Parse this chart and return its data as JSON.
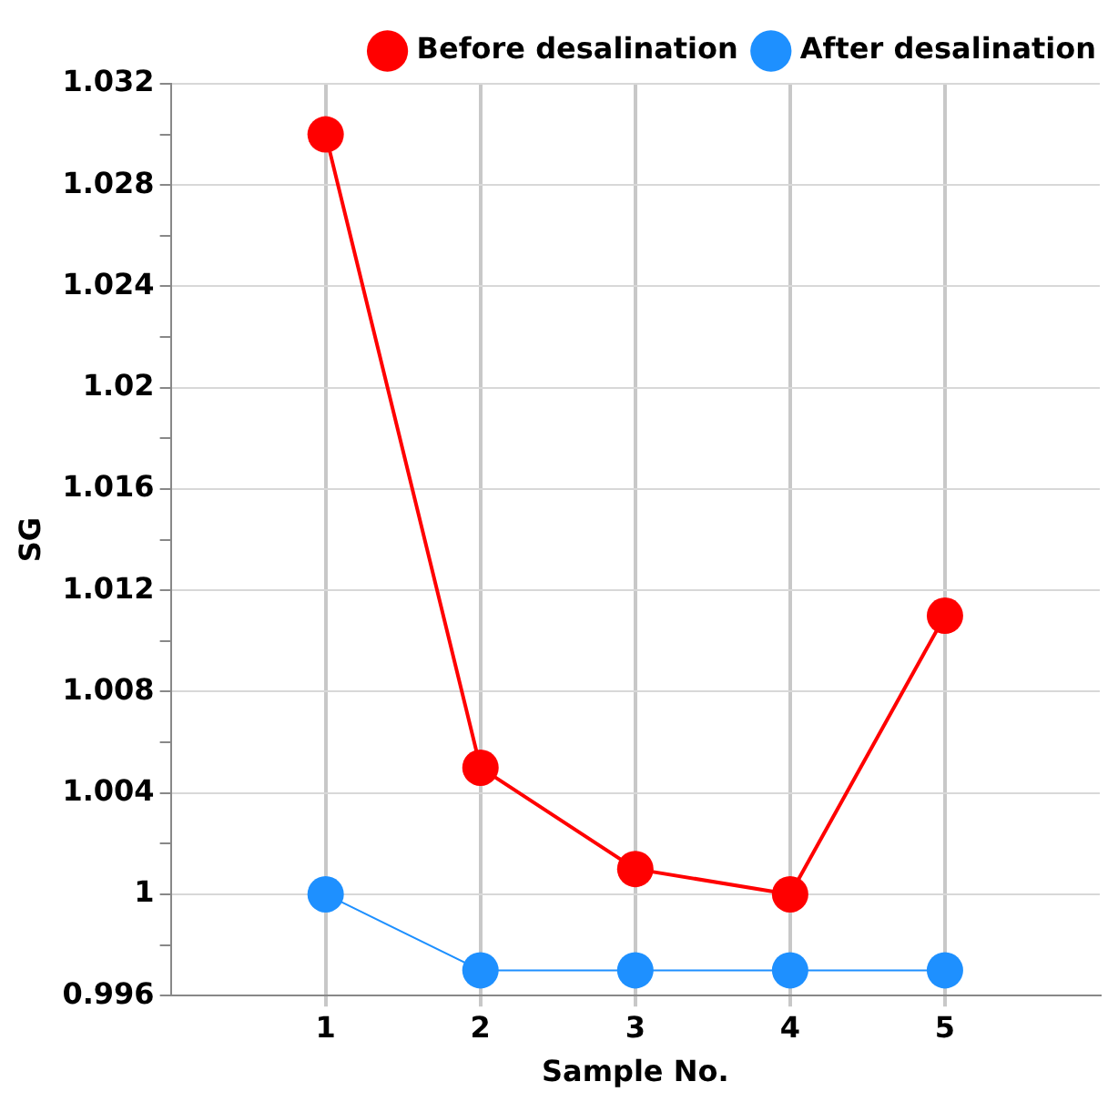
{
  "chart_data": {
    "type": "line",
    "xlabel": "Sample No.",
    "ylabel": "SG",
    "x": [
      1,
      2,
      3,
      4,
      5
    ],
    "series": [
      {
        "name": "Before desalination",
        "color": "#ff0000",
        "values": [
          1.03,
          1.005,
          1.001,
          1.0,
          1.011
        ]
      },
      {
        "name": "After desalination",
        "color": "#1e90ff",
        "values": [
          1.0,
          0.997,
          0.997,
          0.997,
          0.997
        ]
      }
    ],
    "xlim": [
      0,
      6
    ],
    "xticks": [
      1,
      2,
      3,
      4,
      5
    ],
    "ylim": [
      0.996,
      1.032
    ],
    "yticks": [
      0.996,
      {
        "value": 0.998,
        "label": null
      },
      1,
      {
        "value": 1.002,
        "label": null
      },
      1.004,
      {
        "value": 1.006,
        "label": null
      },
      1.008,
      {
        "value": 1.01,
        "label": null
      },
      1.012,
      {
        "value": 1.014,
        "label": null
      },
      1.016,
      {
        "value": 1.018,
        "label": null
      },
      1.02,
      {
        "value": 1.022,
        "label": null
      },
      1.024,
      {
        "value": 1.026,
        "label": null
      },
      1.028,
      {
        "value": 1.03,
        "label": null
      },
      1.032
    ],
    "grid": true,
    "legend": "top right",
    "marker": "circle",
    "line_style": "solid"
  }
}
